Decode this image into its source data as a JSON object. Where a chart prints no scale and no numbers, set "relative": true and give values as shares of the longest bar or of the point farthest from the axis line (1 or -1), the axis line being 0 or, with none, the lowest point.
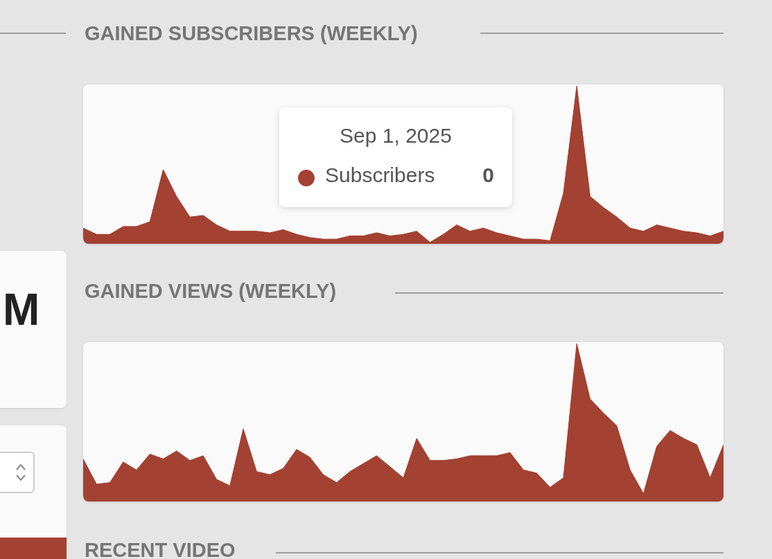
{
  "chart_data": [
    {
      "type": "area",
      "title": "GAINED SUBSCRIBERS (WEEKLY)",
      "relative": true,
      "color": "#a34132",
      "annotations": [
        "Sep 1, 2025",
        "Subscribers",
        "0"
      ],
      "categories": [
        null,
        null,
        null,
        null,
        null,
        null,
        null,
        null,
        null,
        null,
        null,
        null,
        null,
        null,
        null,
        null,
        null,
        null,
        null,
        null,
        null,
        null,
        null,
        null,
        null,
        null,
        null,
        null,
        null,
        null,
        null,
        null,
        null,
        null,
        null,
        null,
        null,
        null,
        null,
        null,
        null,
        null,
        null,
        null,
        null,
        null,
        null,
        null,
        null
      ],
      "values": [
        0.1,
        0.06,
        0.06,
        0.11,
        0.11,
        0.14,
        0.47,
        0.3,
        0.17,
        0.18,
        0.12,
        0.08,
        0.08,
        0.08,
        0.07,
        0.09,
        0.06,
        0.04,
        0.03,
        0.03,
        0.05,
        0.05,
        0.07,
        0.05,
        0.06,
        0.08,
        0.01,
        0.06,
        0.12,
        0.08,
        0.1,
        0.07,
        0.05,
        0.03,
        0.03,
        0.02,
        0.32,
        1,
        0.3,
        0.23,
        0.17,
        0.1,
        0.08,
        0.12,
        0.1,
        0.08,
        0.07,
        0.05,
        0.08
      ]
    },
    {
      "type": "area",
      "title": "GAINED VIEWS (WEEKLY)",
      "relative": true,
      "color": "#a34132",
      "categories": [
        null,
        null,
        null,
        null,
        null,
        null,
        null,
        null,
        null,
        null,
        null,
        null,
        null,
        null,
        null,
        null,
        null,
        null,
        null,
        null,
        null,
        null,
        null,
        null,
        null,
        null,
        null,
        null,
        null,
        null,
        null,
        null,
        null,
        null,
        null,
        null,
        null,
        null,
        null,
        null,
        null,
        null,
        null,
        null,
        null,
        null,
        null,
        null,
        null
      ],
      "values": [
        0.27,
        0.11,
        0.12,
        0.25,
        0.2,
        0.3,
        0.27,
        0.32,
        0.26,
        0.29,
        0.14,
        0.1,
        0.46,
        0.19,
        0.17,
        0.21,
        0.33,
        0.28,
        0.17,
        0.12,
        0.19,
        0.24,
        0.29,
        0.22,
        0.15,
        0.4,
        0.26,
        0.26,
        0.27,
        0.29,
        0.29,
        0.29,
        0.31,
        0.2,
        0.18,
        0.09,
        0.15,
        1,
        0.65,
        0.56,
        0.48,
        0.2,
        0.05,
        0.35,
        0.45,
        0.4,
        0.36,
        0.15,
        0.36
      ]
    },
    {
      "type": "other",
      "annotations": [
        "M"
      ]
    },
    {
      "type": "other",
      "title": "RECENT VIDEO"
    }
  ]
}
